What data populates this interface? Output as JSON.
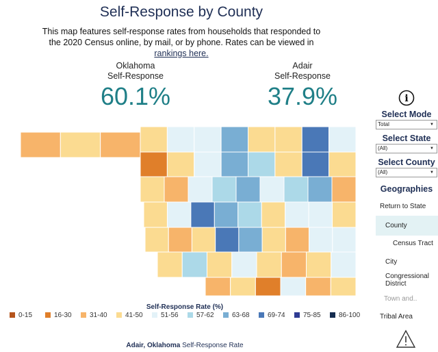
{
  "title": "Self-Response by County",
  "description": "This map features self-response rates from households that responded to the 2020 Census online, by mail, or by phone. Rates can be viewed in",
  "description_link": "rankings here.",
  "stat_left": {
    "line1": "Oklahoma",
    "line2": "Self-Response",
    "value": "60.1%"
  },
  "stat_right": {
    "line1": "Adair",
    "line2": "Self-Response",
    "value": "37.9%"
  },
  "sidebar": {
    "select_mode": {
      "label": "Select Mode",
      "value": "Total"
    },
    "select_state": {
      "label": "Select State",
      "value": "(All)"
    },
    "select_county": {
      "label": "Select County",
      "value": "(All)"
    },
    "geographies_label": "Geographies",
    "items": [
      "Return to State",
      "County",
      "Census Tract",
      "City",
      "Congressional District",
      "Town and..",
      "Tribal Area"
    ]
  },
  "legend": {
    "title": "Self-Response Rate (%)",
    "bins": [
      {
        "label": "0-15",
        "color": "#b5541c"
      },
      {
        "label": "16-30",
        "color": "#e07f2a"
      },
      {
        "label": "31-40",
        "color": "#f7b46a"
      },
      {
        "label": "41-50",
        "color": "#fbdb91"
      },
      {
        "label": "51-56",
        "color": "#e3f2f8"
      },
      {
        "label": "57-62",
        "color": "#acd9e8"
      },
      {
        "label": "63-68",
        "color": "#79aed3"
      },
      {
        "label": "69-74",
        "color": "#4a78b7"
      },
      {
        "label": "75-85",
        "color": "#2f3b93"
      },
      {
        "label": "86-100",
        "color": "#142c4f"
      }
    ],
    "caption_bold": "Adair, Oklahoma",
    "caption_rest": " Self-Response Rate"
  },
  "map": {
    "county_bins": [
      2,
      3,
      2,
      3,
      4,
      4,
      6,
      3,
      3,
      7,
      4,
      1,
      3,
      4,
      6,
      5,
      3,
      7,
      3,
      3,
      2,
      4,
      5,
      6,
      4,
      5,
      6,
      2,
      3,
      4,
      7,
      6,
      5,
      3,
      4,
      4,
      3,
      3,
      2,
      3,
      7,
      6,
      3,
      2,
      4,
      4,
      3,
      5,
      3,
      4,
      3,
      2,
      3,
      4,
      2,
      3,
      1,
      4,
      2,
      3
    ]
  }
}
